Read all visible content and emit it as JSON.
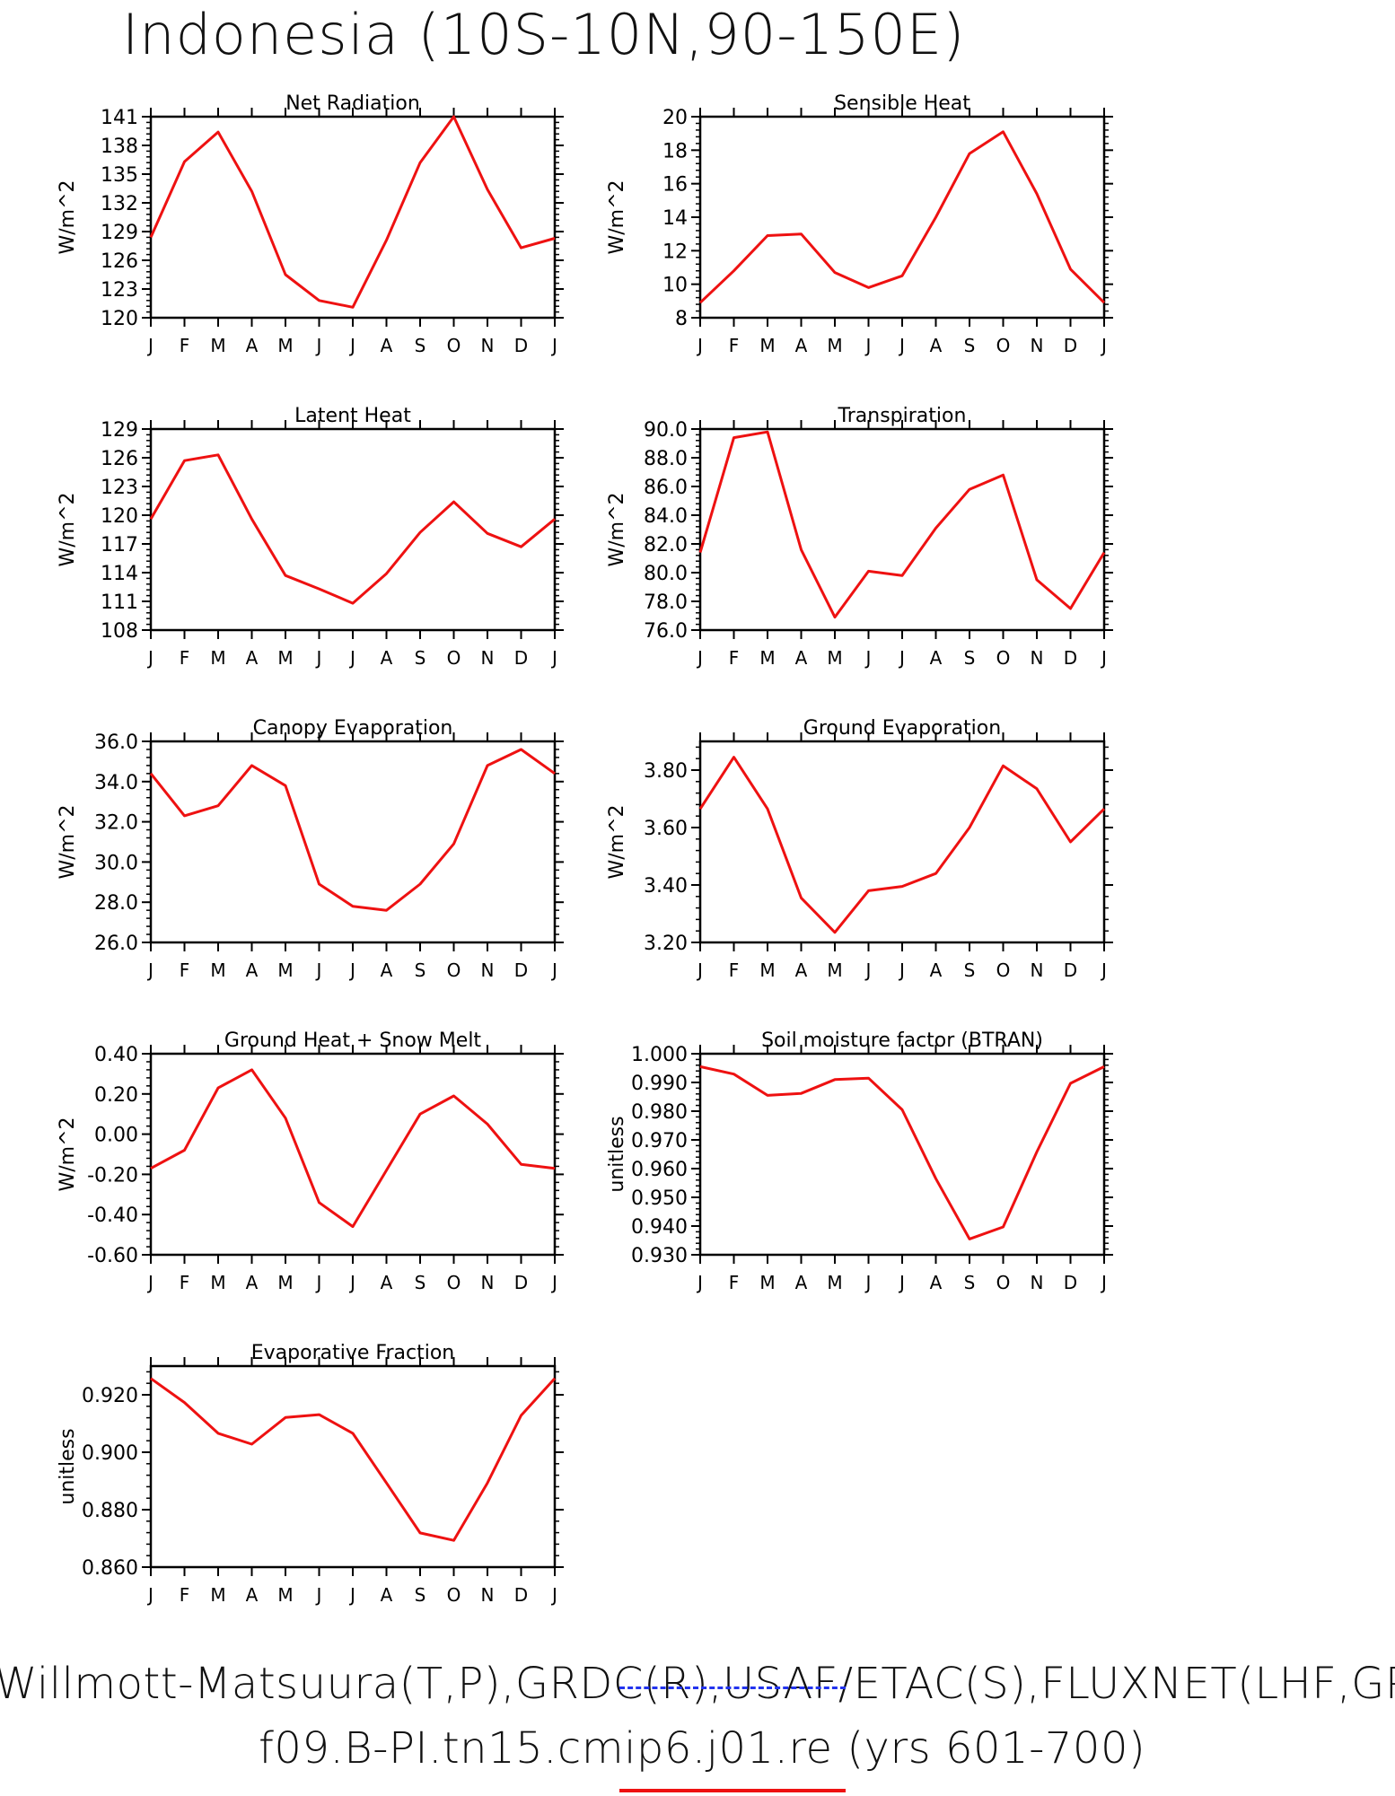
{
  "page": {
    "title": "Indonesia (10S-10N,90-150E)",
    "footer_obs": "Willmott-Matsuura(T,P),GRDC(R),USAF/ETAC(S),FLUXNET(LHF,GPP)",
    "footer_case": "f09.B-PI.tn15.cmip6.j01.re (yrs 601-700)",
    "line_color": "#ee1111",
    "obs_marker_color": "#2233ee"
  },
  "chart_data": [
    {
      "type": "line",
      "title": "Net Radiation",
      "ylabel": "W/m^2",
      "categories": [
        "J",
        "F",
        "M",
        "A",
        "M",
        "J",
        "J",
        "A",
        "S",
        "O",
        "N",
        "D",
        "J"
      ],
      "ylim": [
        120,
        141
      ],
      "yticks": [
        "120",
        "123",
        "126",
        "129",
        "132",
        "135",
        "138",
        "141"
      ],
      "series": [
        {
          "values": [
            128.4,
            136.3,
            139.4,
            133.2,
            124.5,
            121.8,
            121.1,
            128.1,
            136.2,
            141.0,
            133.4,
            127.3,
            128.3
          ]
        }
      ]
    },
    {
      "type": "line",
      "title": "Sensible Heat",
      "ylabel": "W/m^2",
      "categories": [
        "J",
        "F",
        "M",
        "A",
        "M",
        "J",
        "J",
        "A",
        "S",
        "O",
        "N",
        "D",
        "J"
      ],
      "ylim": [
        8,
        20
      ],
      "yticks": [
        "8",
        "10",
        "12",
        "14",
        "16",
        "18",
        "20"
      ],
      "series": [
        {
          "values": [
            8.9,
            10.8,
            12.9,
            13.0,
            10.7,
            9.8,
            10.5,
            14.0,
            17.8,
            19.1,
            15.4,
            10.9,
            8.9
          ]
        }
      ]
    },
    {
      "type": "line",
      "title": "Latent Heat",
      "ylabel": "W/m^2",
      "categories": [
        "J",
        "F",
        "M",
        "A",
        "M",
        "J",
        "J",
        "A",
        "S",
        "O",
        "N",
        "D",
        "J"
      ],
      "ylim": [
        108,
        129
      ],
      "yticks": [
        "108",
        "111",
        "114",
        "117",
        "120",
        "123",
        "126",
        "129"
      ],
      "series": [
        {
          "values": [
            119.6,
            125.7,
            126.3,
            119.6,
            113.7,
            112.3,
            110.8,
            113.9,
            118.2,
            121.4,
            118.1,
            116.7,
            119.6
          ]
        }
      ]
    },
    {
      "type": "line",
      "title": "Transpiration",
      "ylabel": "W/m^2",
      "categories": [
        "J",
        "F",
        "M",
        "A",
        "M",
        "J",
        "J",
        "A",
        "S",
        "O",
        "N",
        "D",
        "J"
      ],
      "ylim": [
        76,
        90
      ],
      "yticks": [
        "76.0",
        "78.0",
        "80.0",
        "82.0",
        "84.0",
        "86.0",
        "88.0",
        "90.0"
      ],
      "series": [
        {
          "values": [
            81.4,
            89.4,
            89.8,
            81.6,
            76.9,
            80.1,
            79.8,
            83.1,
            85.8,
            86.8,
            79.5,
            77.5,
            81.4
          ]
        }
      ]
    },
    {
      "type": "line",
      "title": "Canopy Evaporation",
      "ylabel": "W/m^2",
      "categories": [
        "J",
        "F",
        "M",
        "A",
        "M",
        "J",
        "J",
        "A",
        "S",
        "O",
        "N",
        "D",
        "J"
      ],
      "ylim": [
        26,
        36
      ],
      "yticks": [
        "26.0",
        "28.0",
        "30.0",
        "32.0",
        "34.0",
        "36.0"
      ],
      "series": [
        {
          "values": [
            34.4,
            32.3,
            32.8,
            34.8,
            33.8,
            28.9,
            27.8,
            27.6,
            28.9,
            30.9,
            34.8,
            35.6,
            34.4
          ]
        }
      ]
    },
    {
      "type": "line",
      "title": "Ground Evaporation",
      "ylabel": "W/m^2",
      "categories": [
        "J",
        "F",
        "M",
        "A",
        "M",
        "J",
        "J",
        "A",
        "S",
        "O",
        "N",
        "D",
        "J"
      ],
      "ylim": [
        3.2,
        3.9
      ],
      "yticks": [
        "3.20",
        "3.40",
        "3.60",
        "3.80"
      ],
      "series": [
        {
          "values": [
            3.665,
            3.845,
            3.665,
            3.355,
            3.235,
            3.38,
            3.395,
            3.44,
            3.6,
            3.815,
            3.735,
            3.55,
            3.665
          ]
        }
      ]
    },
    {
      "type": "line",
      "title": "Ground Heat + Snow Melt",
      "ylabel": "W/m^2",
      "categories": [
        "J",
        "F",
        "M",
        "A",
        "M",
        "J",
        "J",
        "A",
        "S",
        "O",
        "N",
        "D",
        "J"
      ],
      "ylim": [
        -0.6,
        0.4
      ],
      "yticks": [
        "-0.60",
        "-0.40",
        "-0.20",
        "0.00",
        "0.20",
        "0.40"
      ],
      "series": [
        {
          "values": [
            -0.17,
            -0.08,
            0.23,
            0.32,
            0.08,
            -0.34,
            -0.46,
            -0.18,
            0.1,
            0.19,
            0.05,
            -0.15,
            -0.17
          ]
        }
      ]
    },
    {
      "type": "line",
      "title": "Soil moisture factor (BTRAN)",
      "ylabel": "unitless",
      "categories": [
        "J",
        "F",
        "M",
        "A",
        "M",
        "J",
        "J",
        "A",
        "S",
        "O",
        "N",
        "D",
        "J"
      ],
      "ylim": [
        0.93,
        1.0
      ],
      "yticks": [
        "0.930",
        "0.940",
        "0.950",
        "0.960",
        "0.970",
        "0.980",
        "0.990",
        "1.000"
      ],
      "series": [
        {
          "values": [
            0.9955,
            0.9929,
            0.9855,
            0.9862,
            0.991,
            0.9915,
            0.9805,
            0.9565,
            0.9355,
            0.9397,
            0.9658,
            0.9897,
            0.9955
          ]
        }
      ]
    },
    {
      "type": "line",
      "title": "Evaporative Fraction",
      "ylabel": "unitless",
      "categories": [
        "J",
        "F",
        "M",
        "A",
        "M",
        "J",
        "J",
        "A",
        "S",
        "O",
        "N",
        "D",
        "J"
      ],
      "ylim": [
        0.86,
        0.93
      ],
      "yticks": [
        "0.860",
        "0.880",
        "0.900",
        "0.920"
      ],
      "series": [
        {
          "values": [
            0.9257,
            0.9173,
            0.9066,
            0.9028,
            0.9121,
            0.9131,
            0.9066,
            0.8893,
            0.8719,
            0.8693,
            0.8893,
            0.9128,
            0.9257
          ]
        }
      ]
    }
  ]
}
